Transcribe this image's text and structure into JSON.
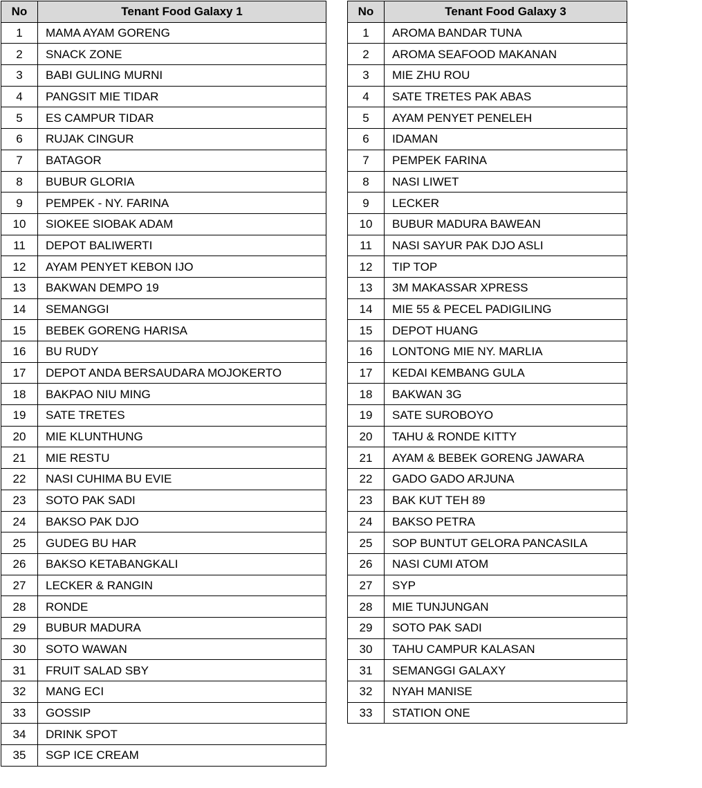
{
  "tables": [
    {
      "header_no": "No",
      "header_name": "Tenant Food Galaxy 1",
      "rows": [
        "MAMA AYAM GORENG",
        "SNACK ZONE",
        "BABI GULING MURNI",
        "PANGSIT MIE TIDAR",
        "ES CAMPUR TIDAR",
        "RUJAK CINGUR",
        "BATAGOR",
        "BUBUR GLORIA",
        "PEMPEK - NY. FARINA",
        "SIOKEE SIOBAK ADAM",
        "DEPOT BALIWERTI",
        "AYAM PENYET KEBON IJO",
        "BAKWAN DEMPO 19",
        "SEMANGGI",
        "BEBEK GORENG HARISA",
        "BU RUDY",
        "DEPOT ANDA BERSAUDARA MOJOKERTO",
        "BAKPAO NIU MING",
        "SATE TRETES",
        "MIE KLUNTHUNG",
        "MIE RESTU",
        "NASI CUHIMA BU EVIE",
        "SOTO PAK SADI",
        "BAKSO PAK DJO",
        "GUDEG BU HAR",
        "BAKSO KETABANGKALI",
        "LECKER & RANGIN",
        "RONDE",
        "BUBUR MADURA",
        "SOTO WAWAN",
        "FRUIT SALAD SBY",
        "MANG ECI",
        "GOSSIP",
        "DRINK SPOT",
        "SGP ICE CREAM"
      ]
    },
    {
      "header_no": "No",
      "header_name": "Tenant Food Galaxy 3",
      "rows": [
        "AROMA BANDAR TUNA",
        "AROMA SEAFOOD MAKANAN",
        "MIE ZHU ROU",
        "SATE TRETES PAK ABAS",
        "AYAM PENYET PENELEH",
        "IDAMAN",
        "PEMPEK FARINA",
        "NASI LIWET",
        "LECKER",
        "BUBUR MADURA BAWEAN",
        "NASI SAYUR PAK DJO ASLI",
        "TIP TOP",
        "3M MAKASSAR XPRESS",
        "MIE 55 & PECEL PADIGILING",
        "DEPOT HUANG",
        "LONTONG MIE NY. MARLIA",
        "KEDAI KEMBANG GULA",
        "BAKWAN 3G",
        "SATE SUROBOYO",
        "TAHU & RONDE KITTY",
        "AYAM & BEBEK GORENG JAWARA",
        "GADO GADO ARJUNA",
        "BAK KUT TEH 89",
        "BAKSO PETRA",
        "SOP BUNTUT GELORA PANCASILA",
        "NASI CUMI ATOM",
        "SYP",
        "MIE TUNJUNGAN",
        "SOTO PAK SADI",
        "TAHU CAMPUR KALASAN",
        "SEMANGGI GALAXY",
        "NYAH MANISE",
        "STATION ONE"
      ]
    }
  ]
}
